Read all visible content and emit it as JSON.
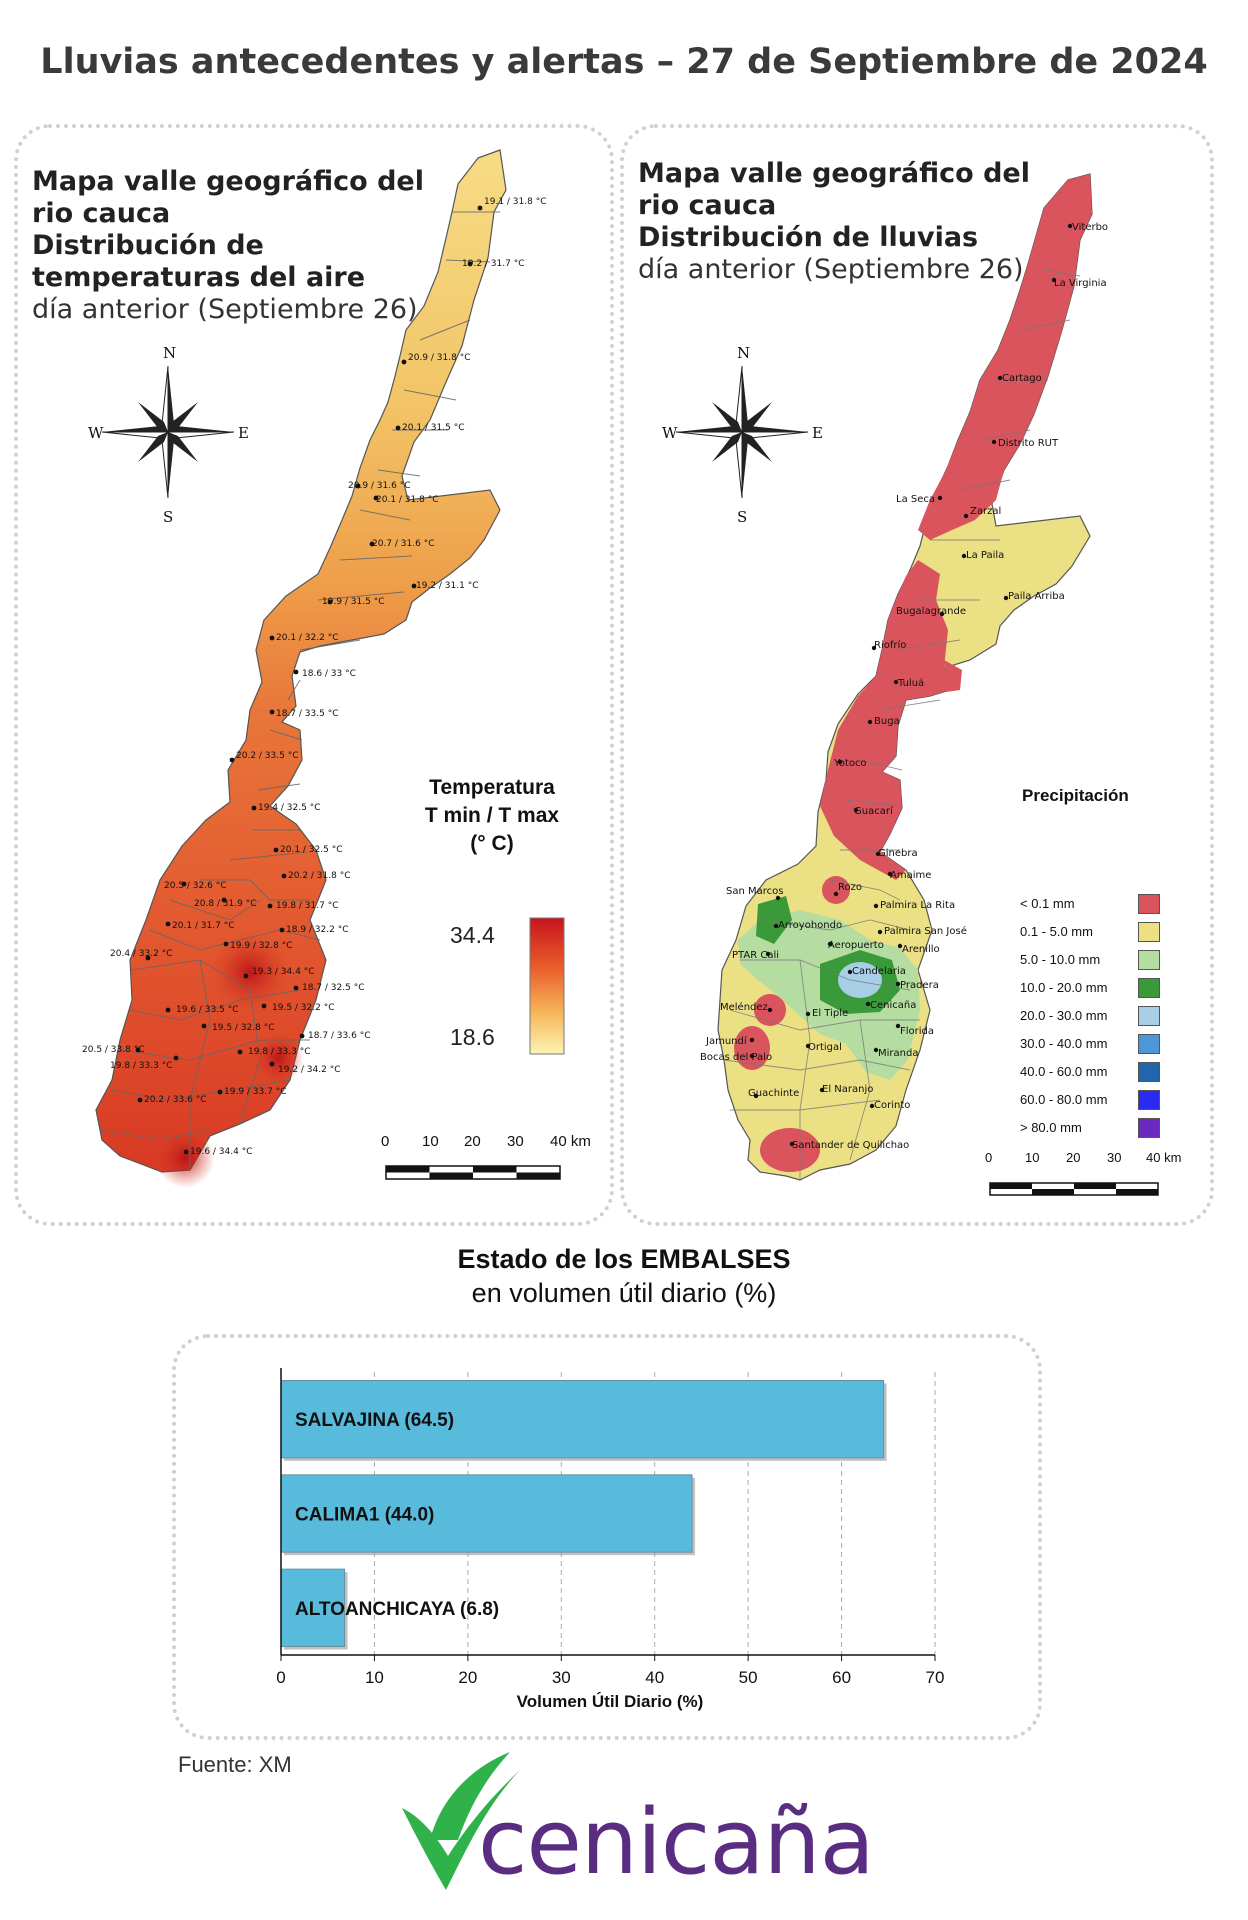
{
  "title": "Lluvias antecedentes y alertas – 27 de Septiembre de 2024",
  "temp_map": {
    "title_line1": "Mapa valle geográfico del",
    "title_line2": "rio cauca",
    "title_line3": "Distribución de",
    "title_line4": "temperaturas del aire",
    "subtitle": "día anterior (Septiembre 26)",
    "legend_title_1": "Temperatura",
    "legend_title_2": "T min / T max",
    "legend_title_3": "(° C)",
    "legend_max": "34.4",
    "legend_min": "18.6",
    "stations": [
      "19.1 / 31.8 °C",
      "19.2 / 31.7 °C",
      "20.9 / 31.8 °C",
      "20.1 / 31.5 °C",
      "20.9 / 31.6 °C",
      "20.1 / 31.8 °C",
      "20.7 / 31.6 °C",
      "19.2 / 31.1 °C",
      "19.9 / 31.5 °C",
      "20.1 / 32.2 °C",
      "18.6 / 33 °C",
      "18.7 / 33.5 °C",
      "20.2 / 33.5 °C",
      "19.4 / 32.5 °C",
      "20.1 / 32.5 °C",
      "20.2 / 31.8 °C",
      "20.5 / 32.6 °C",
      "20.8 / 31.9 °C",
      "19.8 / 31.7 °C",
      "20.1 / 31.7 °C",
      "18.9 / 32.2 °C",
      "19.9 / 32.8 °C",
      "20.4 / 33.2 °C",
      "19.3 / 34.4 °C",
      "18.7 / 32.5 °C",
      "19.6 / 33.5 °C",
      "19.5 / 32.2 °C",
      "19.5 / 32.8 °C",
      "18.7 / 33.6 °C",
      "20.5 / 33.8 °C",
      "19.8 / 33.3 °C",
      "19.8 / 33.3 °C",
      "19.2 / 34.2 °C",
      "19.9 / 33.7 °C",
      "20.2 / 33.6 °C",
      "19.6 / 34.4 °C"
    ]
  },
  "rain_map": {
    "title_line1": "Mapa valle geográfico del",
    "title_line2": "rio cauca",
    "title_line3": "Distribución de lluvias",
    "subtitle": "día anterior (Septiembre 26)",
    "legend_title": "Precipitación",
    "legend": [
      {
        "label": "< 0.1 mm",
        "color": "#d9545c"
      },
      {
        "label": "0.1 - 5.0 mm",
        "color": "#ece085"
      },
      {
        "label": "5.0 - 10.0 mm",
        "color": "#b5dda1"
      },
      {
        "label": "10.0 - 20.0 mm",
        "color": "#3a9a3a"
      },
      {
        "label": "20.0 - 30.0 mm",
        "color": "#a9cfe6"
      },
      {
        "label": "30.0 - 40.0 mm",
        "color": "#4d96d8"
      },
      {
        "label": "40.0 - 60.0 mm",
        "color": "#2166ac"
      },
      {
        "label": "60.0 - 80.0 mm",
        "color": "#2a2af0"
      },
      {
        "label": "> 80.0 mm",
        "color": "#6a2ac0"
      }
    ],
    "cities": [
      "Viterbo",
      "La Virginia",
      "Cartago",
      "Distrito RUT",
      "La Seca",
      "Zarzal",
      "La Paila",
      "Paila Arriba",
      "Bugalagrande",
      "Riofrío",
      "Tuluá",
      "Buga",
      "Yotoco",
      "Guacarí",
      "Ginebra",
      "Amaime",
      "Rozo",
      "San Marcos",
      "Palmira La Rita",
      "Arroyohondo",
      "Palmira San José",
      "Aeropuerto",
      "Arenillo",
      "PTAR Cali",
      "Candelaria",
      "Pradera",
      "Meléndez",
      "Cenicaña",
      "El Tiple",
      "Jamundí",
      "Bocas del Palo",
      "Florida",
      "Ortigal",
      "Miranda",
      "Guachinte",
      "El Naranjo",
      "Corinto",
      "Santander de Quilichao"
    ]
  },
  "compass": {
    "n": "N",
    "s": "S",
    "e": "E",
    "w": "W"
  },
  "scale": {
    "ticks": [
      "0",
      "10",
      "20",
      "30",
      "40 km"
    ]
  },
  "reservoirs": {
    "title": "Estado de los EMBALSES",
    "subtitle": "en volumen útil diario (%)"
  },
  "chart_data": {
    "type": "bar",
    "orientation": "horizontal",
    "categories": [
      "SALVAJINA",
      "CALIMA1",
      "ALTOANCHICAYA"
    ],
    "bar_labels": [
      "SALVAJINA (64.5)",
      "CALIMA1 (44.0)",
      "ALTOANCHICAYA (6.8)"
    ],
    "values": [
      64.5,
      44.0,
      6.8
    ],
    "xlabel": "Volumen Útil Diario (%)",
    "xlim": [
      0,
      70
    ],
    "xticks": [
      0,
      10,
      20,
      30,
      40,
      50,
      60,
      70
    ],
    "bar_color": "#58bbdb",
    "grid": true
  },
  "source": "Fuente: XM",
  "logo": {
    "text": "cenicaña",
    "green": "#2fb24a",
    "purple": "#5a2d82"
  }
}
